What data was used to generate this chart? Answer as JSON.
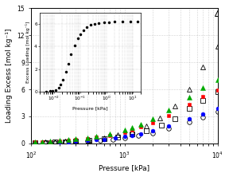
{
  "main": {
    "xlabel": "Pressure [kPa]",
    "ylabel": "Loading Excess [mol kg⁻¹]",
    "xlim": [
      100,
      10000
    ],
    "ylim": [
      0,
      15
    ],
    "yticks": [
      0,
      3,
      6,
      9,
      12,
      15
    ],
    "label_fontsize": 6.5,
    "tick_fontsize": 5.5,
    "N2_sim_x": [
      110,
      130,
      160,
      200,
      250,
      300,
      400,
      500,
      600,
      800,
      1000,
      1200,
      1500,
      2000,
      3000,
      5000,
      7000,
      10000
    ],
    "N2_sim_y": [
      0.07,
      0.09,
      0.12,
      0.15,
      0.19,
      0.23,
      0.31,
      0.38,
      0.45,
      0.6,
      0.74,
      0.88,
      1.08,
      1.38,
      1.95,
      2.75,
      3.3,
      3.85
    ],
    "O2_sim_x": [
      110,
      130,
      160,
      200,
      250,
      300,
      400,
      500,
      700,
      1000,
      1200,
      1500,
      2000,
      3000,
      5000,
      7000,
      10000
    ],
    "O2_sim_y": [
      0.12,
      0.15,
      0.2,
      0.26,
      0.33,
      0.4,
      0.53,
      0.66,
      0.9,
      1.25,
      1.48,
      1.8,
      2.28,
      3.1,
      4.3,
      5.2,
      5.9
    ],
    "Ar_sim_x": [
      110,
      130,
      160,
      200,
      250,
      300,
      400,
      500,
      700,
      1000,
      1200,
      1500,
      2000,
      3000,
      5000,
      7000,
      10000
    ],
    "Ar_sim_y": [
      0.14,
      0.18,
      0.24,
      0.31,
      0.39,
      0.47,
      0.62,
      0.78,
      1.06,
      1.47,
      1.74,
      2.13,
      2.7,
      3.7,
      5.15,
      6.2,
      7.1
    ],
    "N2_prev_x": [
      110,
      140,
      180,
      230,
      300,
      400,
      550,
      750,
      1000,
      1400,
      2000,
      3000,
      5000,
      7000,
      10000
    ],
    "N2_prev_y": [
      0.06,
      0.08,
      0.11,
      0.14,
      0.19,
      0.25,
      0.34,
      0.46,
      0.61,
      0.84,
      1.15,
      1.65,
      2.35,
      2.9,
      3.5
    ],
    "O2_prev_x": [
      110,
      140,
      180,
      230,
      300,
      420,
      600,
      850,
      1200,
      1700,
      2500,
      3500,
      5000,
      7000,
      10000
    ],
    "O2_prev_y": [
      0.08,
      0.1,
      0.14,
      0.19,
      0.25,
      0.35,
      0.51,
      0.72,
      1.0,
      1.4,
      2.0,
      2.75,
      3.85,
      4.8,
      5.75
    ],
    "Ar_prev_x": [
      110,
      140,
      180,
      230,
      300,
      420,
      600,
      850,
      1200,
      1700,
      2400,
      3500,
      5000,
      7000,
      10000
    ],
    "Ar_prev_y": [
      0.09,
      0.12,
      0.17,
      0.22,
      0.3,
      0.44,
      0.64,
      0.92,
      1.3,
      1.9,
      2.8,
      4.1,
      6.0,
      8.5,
      10.8
    ],
    "Ar_prev_high_x": [
      10000
    ],
    "Ar_prev_high_y": [
      14.5
    ]
  },
  "inset": {
    "xlabel": "Pressure [kPa]",
    "ylabel": "Excess Loading [mol kg⁻¹]",
    "ylim": [
      0,
      7
    ],
    "yticks": [
      0,
      2,
      4,
      6
    ],
    "CCl4_x": [
      0.005,
      0.007,
      0.009,
      0.012,
      0.015,
      0.018,
      0.022,
      0.028,
      0.035,
      0.045,
      0.06,
      0.08,
      0.1,
      0.13,
      0.18,
      0.25,
      0.35,
      0.5,
      0.8,
      1.2,
      2.0,
      4.0,
      8.0,
      15.0
    ],
    "CCl4_y": [
      0.05,
      0.07,
      0.1,
      0.18,
      0.35,
      0.65,
      1.1,
      1.8,
      2.5,
      3.3,
      4.1,
      4.75,
      5.1,
      5.45,
      5.7,
      5.9,
      6.0,
      6.08,
      6.12,
      6.15,
      6.18,
      6.2,
      6.22,
      6.23
    ]
  },
  "colors": {
    "N2_sim": "#0000ff",
    "O2_sim": "#ff0000",
    "Ar_sim": "#00aa00",
    "CCl4": "#000000"
  }
}
